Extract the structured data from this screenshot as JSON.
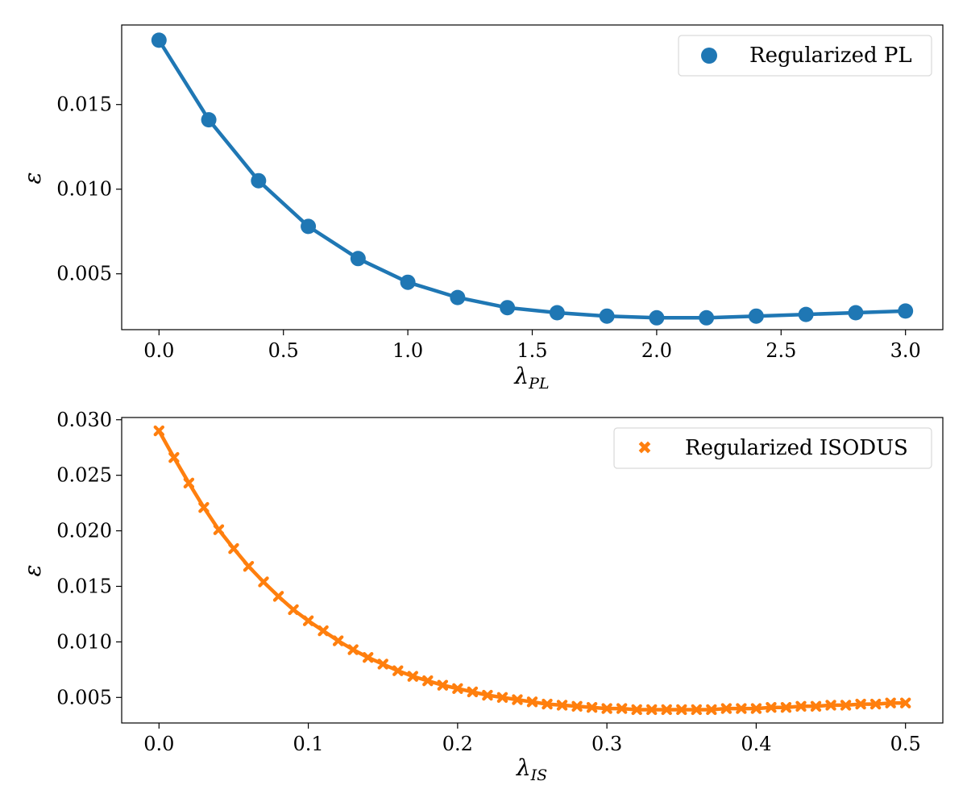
{
  "chart_data": [
    {
      "type": "line",
      "title": "",
      "xlabel": "λ",
      "xlabel_sub": "PL",
      "ylabel": "ε",
      "xlim": [
        -0.15,
        3.15
      ],
      "ylim": [
        0.0017,
        0.0197
      ],
      "xticks": [
        "0.0",
        "0.5",
        "1.0",
        "1.5",
        "2.0",
        "2.5",
        "3.0"
      ],
      "xtick_values": [
        0.0,
        0.5,
        1.0,
        1.5,
        2.0,
        2.5,
        3.0
      ],
      "yticks": [
        "0.005",
        "0.010",
        "0.015"
      ],
      "ytick_values": [
        0.005,
        0.01,
        0.015
      ],
      "grid": false,
      "legend_position": "top-right",
      "marker": "circle",
      "color": "#1f77b4",
      "series": [
        {
          "name": "Regularized PL",
          "x": [
            0.0,
            0.2,
            0.4,
            0.6,
            0.8,
            1.0,
            1.2,
            1.4,
            1.6,
            1.8,
            2.0,
            2.2,
            2.4,
            2.6,
            2.8,
            3.0
          ],
          "values": [
            0.0188,
            0.0141,
            0.0105,
            0.0078,
            0.0059,
            0.0045,
            0.0036,
            0.003,
            0.0027,
            0.0025,
            0.0024,
            0.0024,
            0.0025,
            0.0026,
            0.0027,
            0.0028
          ]
        }
      ]
    },
    {
      "type": "line",
      "title": "",
      "xlabel": "λ",
      "xlabel_sub": "IS",
      "ylabel": "ε",
      "xlim": [
        -0.025,
        0.525
      ],
      "ylim": [
        0.0027,
        0.0302
      ],
      "xticks": [
        "0.0",
        "0.1",
        "0.2",
        "0.3",
        "0.4",
        "0.5"
      ],
      "xtick_values": [
        0.0,
        0.1,
        0.2,
        0.3,
        0.4,
        0.5
      ],
      "yticks": [
        "0.005",
        "0.010",
        "0.015",
        "0.020",
        "0.025",
        "0.030"
      ],
      "ytick_values": [
        0.005,
        0.01,
        0.015,
        0.02,
        0.025,
        0.03
      ],
      "grid": false,
      "legend_position": "top-right",
      "marker": "x-filled",
      "color": "#ff7f0e",
      "series": [
        {
          "name": "Regularized ISODUS",
          "x": [
            0.0,
            0.01,
            0.02,
            0.03,
            0.04,
            0.05,
            0.06,
            0.07,
            0.08,
            0.09,
            0.1,
            0.11,
            0.12,
            0.13,
            0.14,
            0.15,
            0.16,
            0.17,
            0.18,
            0.19,
            0.2,
            0.21,
            0.22,
            0.23,
            0.24,
            0.25,
            0.26,
            0.27,
            0.28,
            0.29,
            0.3,
            0.31,
            0.32,
            0.33,
            0.34,
            0.35,
            0.36,
            0.37,
            0.38,
            0.39,
            0.4,
            0.41,
            0.42,
            0.43,
            0.44,
            0.45,
            0.46,
            0.47,
            0.48,
            0.49,
            0.5
          ],
          "values": [
            0.029,
            0.0266,
            0.0243,
            0.0221,
            0.0201,
            0.0184,
            0.0168,
            0.0154,
            0.0141,
            0.0129,
            0.0119,
            0.011,
            0.0101,
            0.0093,
            0.0086,
            0.008,
            0.0074,
            0.0069,
            0.0065,
            0.0061,
            0.0058,
            0.0055,
            0.0052,
            0.005,
            0.0048,
            0.0046,
            0.0044,
            0.0043,
            0.0042,
            0.0041,
            0.004,
            0.004,
            0.0039,
            0.0039,
            0.0039,
            0.0039,
            0.0039,
            0.0039,
            0.004,
            0.004,
            0.004,
            0.0041,
            0.0041,
            0.0042,
            0.0042,
            0.0043,
            0.0043,
            0.0044,
            0.0044,
            0.0045,
            0.0045
          ]
        }
      ]
    }
  ]
}
